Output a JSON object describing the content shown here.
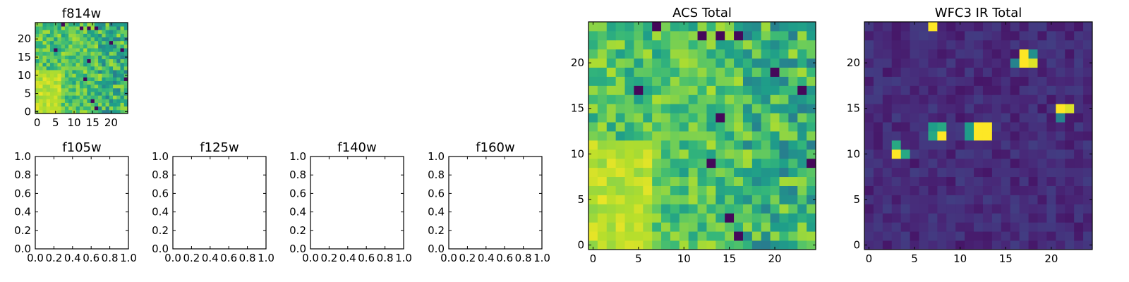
{
  "chart_data": [
    {
      "type": "heatmap",
      "title": "f814w",
      "colormap": "viridis",
      "grid_size": 25,
      "xlim": [
        -0.5,
        24.5
      ],
      "ylim": [
        -0.5,
        24.5
      ],
      "x_ticks": [
        0,
        5,
        10,
        15,
        20
      ],
      "y_ticks": [
        0,
        5,
        10,
        15,
        20
      ],
      "same_data_as": "ACS Total"
    },
    {
      "type": "scatter",
      "title": "f105w",
      "xlim": [
        0,
        1
      ],
      "ylim": [
        0,
        1
      ],
      "x_ticks": [
        "0.0",
        "0.2",
        "0.4",
        "0.6",
        "0.8",
        "1.0"
      ],
      "y_ticks": [
        "0.0",
        "0.2",
        "0.4",
        "0.6",
        "0.8",
        "1.0"
      ],
      "empty": true
    },
    {
      "type": "scatter",
      "title": "f125w",
      "xlim": [
        0,
        1
      ],
      "ylim": [
        0,
        1
      ],
      "x_ticks": [
        "0.0",
        "0.2",
        "0.4",
        "0.6",
        "0.8",
        "1.0"
      ],
      "y_ticks": [
        "0.0",
        "0.2",
        "0.4",
        "0.6",
        "0.8",
        "1.0"
      ],
      "empty": true
    },
    {
      "type": "scatter",
      "title": "f140w",
      "xlim": [
        0,
        1
      ],
      "ylim": [
        0,
        1
      ],
      "x_ticks": [
        "0.0",
        "0.2",
        "0.4",
        "0.6",
        "0.8",
        "1.0"
      ],
      "y_ticks": [
        "0.0",
        "0.2",
        "0.4",
        "0.6",
        "0.8",
        "1.0"
      ],
      "empty": true
    },
    {
      "type": "scatter",
      "title": "f160w",
      "xlim": [
        0,
        1
      ],
      "ylim": [
        0,
        1
      ],
      "x_ticks": [
        "0.0",
        "0.2",
        "0.4",
        "0.6",
        "0.8",
        "1.0"
      ],
      "y_ticks": [
        "0.0",
        "0.2",
        "0.4",
        "0.6",
        "0.8",
        "1.0"
      ],
      "empty": true
    },
    {
      "type": "heatmap",
      "title": "ACS Total",
      "colormap": "viridis",
      "grid_size": 25,
      "xlim": [
        -0.5,
        24.5
      ],
      "ylim": [
        -0.5,
        24.5
      ],
      "x_ticks": [
        0,
        5,
        10,
        15,
        20
      ],
      "y_ticks": [
        0,
        5,
        10,
        15,
        20
      ],
      "value_range": [
        0,
        1
      ],
      "description_of_values": "noise field, higher (yellow) toward lower-left, roughly 0.45-1.0; scattered dark outliers",
      "outliers_low": [
        [
          7,
          24
        ],
        [
          12,
          23
        ],
        [
          14,
          23
        ],
        [
          16,
          23
        ],
        [
          20,
          19
        ],
        [
          14,
          14
        ],
        [
          24,
          9
        ],
        [
          13,
          9
        ],
        [
          16,
          1
        ],
        [
          15,
          3
        ],
        [
          5,
          17
        ],
        [
          23,
          17
        ]
      ],
      "hot_region": {
        "x": [
          0,
          6
        ],
        "y": [
          0,
          11
        ],
        "level": 0.9
      }
    },
    {
      "type": "heatmap",
      "title": "WFC3 IR Total",
      "colormap": "viridis",
      "grid_size": 25,
      "xlim": [
        -0.5,
        24.5
      ],
      "ylim": [
        -0.5,
        24.5
      ],
      "x_ticks": [
        0,
        5,
        10,
        15,
        20
      ],
      "y_ticks": [
        0,
        5,
        10,
        15,
        20
      ],
      "value_range": [
        0,
        1
      ],
      "background_level": 0.12,
      "bright_pixels": [
        {
          "x": 7,
          "y": 24,
          "v": 1.0
        },
        {
          "x": 17,
          "y": 21,
          "v": 1.0
        },
        {
          "x": 18,
          "y": 21,
          "v": 0.5
        },
        {
          "x": 16,
          "y": 20,
          "v": 0.45
        },
        {
          "x": 17,
          "y": 20,
          "v": 1.0
        },
        {
          "x": 18,
          "y": 20,
          "v": 0.95
        },
        {
          "x": 21,
          "y": 15,
          "v": 1.0
        },
        {
          "x": 22,
          "y": 15,
          "v": 0.95
        },
        {
          "x": 21,
          "y": 14,
          "v": 0.45
        },
        {
          "x": 7,
          "y": 13,
          "v": 0.55
        },
        {
          "x": 8,
          "y": 13,
          "v": 0.6
        },
        {
          "x": 11,
          "y": 13,
          "v": 0.55
        },
        {
          "x": 12,
          "y": 13,
          "v": 1.0
        },
        {
          "x": 13,
          "y": 13,
          "v": 1.0
        },
        {
          "x": 7,
          "y": 12,
          "v": 0.6
        },
        {
          "x": 8,
          "y": 12,
          "v": 1.0
        },
        {
          "x": 11,
          "y": 12,
          "v": 0.55
        },
        {
          "x": 12,
          "y": 12,
          "v": 1.0
        },
        {
          "x": 13,
          "y": 12,
          "v": 1.0
        },
        {
          "x": 3,
          "y": 11,
          "v": 0.6
        },
        {
          "x": 3,
          "y": 10,
          "v": 1.0
        },
        {
          "x": 4,
          "y": 10,
          "v": 0.6
        }
      ]
    }
  ]
}
